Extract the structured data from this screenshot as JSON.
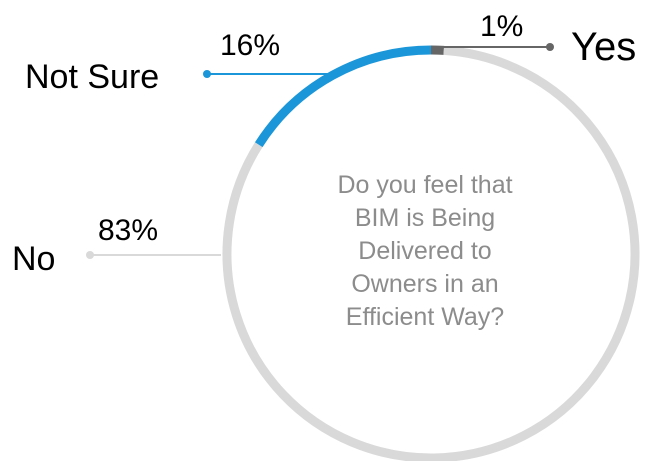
{
  "chart_data": {
    "type": "pie",
    "title": "",
    "center_text": [
      "Do you feel that",
      "BIM is Being",
      "Delivered to",
      "Owners in an",
      "Efficient Way?"
    ],
    "slices": [
      {
        "label": "Yes",
        "value": 1,
        "value_label": "1%",
        "color": "#666666"
      },
      {
        "label": "Not Sure",
        "value": 16,
        "value_label": "16%",
        "color": "#1b96d8"
      },
      {
        "label": "No",
        "value": 83,
        "value_label": "83%",
        "color": "#d9d9d9"
      }
    ]
  }
}
